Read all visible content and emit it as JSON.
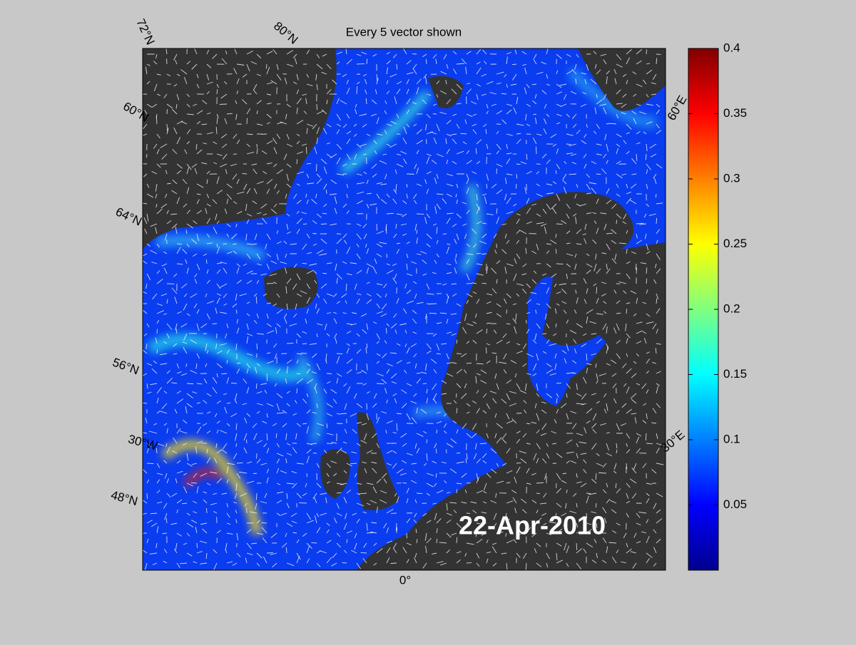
{
  "title": "Every 5 vector shown",
  "date_label": "22-Apr-2010",
  "graticule_labels": [
    "72°N",
    "80°N",
    "60°N",
    "64°N",
    "56°N",
    "48°N",
    "30°W",
    "0°",
    "30°E",
    "60°E"
  ],
  "colorbar": {
    "lim": [
      0,
      0.4
    ],
    "ticks": [
      0.05,
      0.1,
      0.15,
      0.2,
      0.25,
      0.3,
      0.35,
      0.4
    ]
  }
}
